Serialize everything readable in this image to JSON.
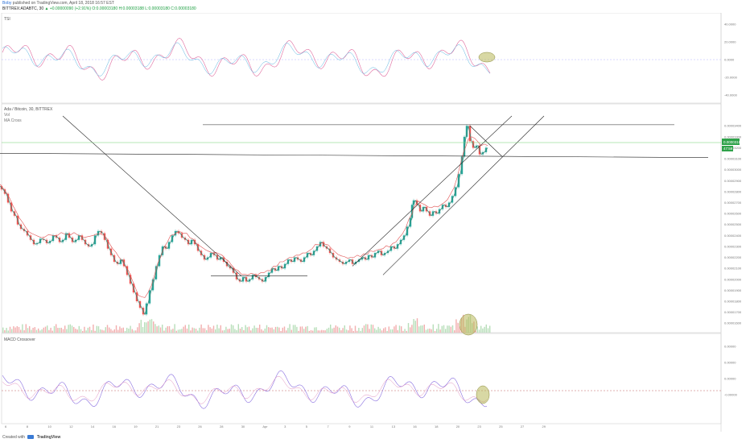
{
  "header": {
    "publisher_user": "Boby",
    "publisher_text": "published on TradingView.com, April 18, 2018 16:57 EST",
    "symbol_line": "BITTREX:ADABTC, 30",
    "ohlc_text": "O:0.00003180 H:0.00003188 L:0.00003180 C:0.00003180",
    "change_text": "▲ +0.00000090 (+2.91%)"
  },
  "panes": {
    "top_label": "TSI",
    "main_label": "Ada / Bitcoin, 30, BITTREX",
    "main_sub1": "Vol",
    "main_sub2": "MA Cross",
    "bottom_label": "MACD Crossover"
  },
  "price_badges": {
    "last": "0.00003180",
    "small": "47:59"
  },
  "footer": {
    "created_with": "Created with",
    "brand": "TradingView"
  },
  "chart_data": {
    "type": "line",
    "x_ticks": [
      "6",
      "8",
      "10",
      "12",
      "14",
      "16",
      "19",
      "21",
      "23",
      "26",
      "28",
      "30",
      "Apr",
      "3",
      "5",
      "7",
      "9",
      "11",
      "13",
      "16",
      "18",
      "20",
      "23",
      "25",
      "27",
      "29"
    ],
    "top_pane": {
      "name": "TSI",
      "y_ticks": [
        "40.0000",
        "20.0000",
        "0.0000",
        "-20.0000",
        "-40.0000"
      ],
      "ylim": [
        -50,
        50
      ]
    },
    "main_pane": {
      "name": "Ada / Bitcoin, 30, BITTREX",
      "y_ticks": [
        "0.00003400",
        "0.00003300",
        "0.00003200",
        "0.00003100",
        "0.00003000",
        "0.00002900",
        "0.00002800",
        "0.00002700",
        "0.00002600",
        "0.00002500",
        "0.00002400",
        "0.00002300",
        "0.00002200",
        "0.00002100",
        "0.00002000",
        "0.00001900",
        "0.00001800",
        "0.00001700",
        "0.00001600"
      ],
      "ylim": [
        1.55e-05,
        3.49e-05
      ],
      "price_path": [
        [
          0,
          2.85e-05
        ],
        [
          4,
          2.82e-05
        ],
        [
          8,
          2.78e-05
        ],
        [
          12,
          2.7e-05
        ],
        [
          16,
          2.62e-05
        ],
        [
          20,
          2.58e-05
        ],
        [
          24,
          2.5e-05
        ],
        [
          28,
          2.46e-05
        ],
        [
          32,
          2.44e-05
        ],
        [
          36,
          2.4e-05
        ],
        [
          40,
          2.36e-05
        ],
        [
          44,
          2.32e-05
        ],
        [
          48,
          2.33e-05
        ],
        [
          52,
          2.37e-05
        ],
        [
          56,
          2.36e-05
        ],
        [
          60,
          2.33e-05
        ],
        [
          64,
          2.35e-05
        ],
        [
          68,
          2.4e-05
        ],
        [
          72,
          2.38e-05
        ],
        [
          76,
          2.34e-05
        ],
        [
          80,
          2.36e-05
        ],
        [
          84,
          2.42e-05
        ],
        [
          88,
          2.38e-05
        ],
        [
          92,
          2.34e-05
        ],
        [
          96,
          2.36e-05
        ],
        [
          100,
          2.4e-05
        ],
        [
          104,
          2.36e-05
        ],
        [
          108,
          2.32e-05
        ],
        [
          112,
          2.3e-05
        ],
        [
          116,
          2.32e-05
        ],
        [
          120,
          2.4e-05
        ],
        [
          124,
          2.44e-05
        ],
        [
          128,
          2.42e-05
        ],
        [
          132,
          2.36e-05
        ],
        [
          136,
          2.28e-05
        ],
        [
          140,
          2.22e-05
        ],
        [
          144,
          2.16e-05
        ],
        [
          148,
          2.14e-05
        ],
        [
          152,
          2.18e-05
        ],
        [
          156,
          2.12e-05
        ],
        [
          160,
          2.04e-05
        ],
        [
          164,
          1.96e-05
        ],
        [
          168,
          1.88e-05
        ],
        [
          172,
          1.8e-05
        ],
        [
          176,
          1.74e-05
        ],
        [
          180,
          1.68e-05
        ],
        [
          184,
          1.78e-05
        ],
        [
          188,
          1.9e-05
        ],
        [
          192,
          2e-05
        ],
        [
          196,
          2.12e-05
        ],
        [
          200,
          2.22e-05
        ],
        [
          204,
          2.3e-05
        ],
        [
          208,
          2.28e-05
        ],
        [
          212,
          2.34e-05
        ],
        [
          216,
          2.4e-05
        ],
        [
          220,
          2.44e-05
        ],
        [
          224,
          2.42e-05
        ],
        [
          228,
          2.38e-05
        ],
        [
          232,
          2.36e-05
        ],
        [
          236,
          2.32e-05
        ],
        [
          240,
          2.36e-05
        ],
        [
          244,
          2.32e-05
        ],
        [
          248,
          2.26e-05
        ],
        [
          252,
          2.22e-05
        ],
        [
          256,
          2.18e-05
        ],
        [
          260,
          2.2e-05
        ],
        [
          264,
          2.24e-05
        ],
        [
          268,
          2.22e-05
        ],
        [
          272,
          2.18e-05
        ],
        [
          276,
          2.2e-05
        ],
        [
          280,
          2.16e-05
        ],
        [
          284,
          2.12e-05
        ],
        [
          288,
          2.1e-05
        ],
        [
          292,
          2.06e-05
        ],
        [
          296,
          2e-05
        ],
        [
          300,
          1.98e-05
        ],
        [
          304,
          2.02e-05
        ],
        [
          308,
          1.98e-05
        ],
        [
          312,
          2e-05
        ],
        [
          316,
          2.04e-05
        ],
        [
          320,
          2.02e-05
        ],
        [
          324,
          2e-05
        ],
        [
          328,
          1.98e-05
        ],
        [
          332,
          2.02e-05
        ],
        [
          336,
          2.06e-05
        ],
        [
          340,
          2.1e-05
        ],
        [
          344,
          2.08e-05
        ],
        [
          348,
          2.12e-05
        ],
        [
          352,
          2.1e-05
        ],
        [
          356,
          2.14e-05
        ],
        [
          360,
          2.18e-05
        ],
        [
          364,
          2.16e-05
        ],
        [
          368,
          2.2e-05
        ],
        [
          372,
          2.18e-05
        ],
        [
          376,
          2.16e-05
        ],
        [
          380,
          2.2e-05
        ],
        [
          384,
          2.24e-05
        ],
        [
          388,
          2.22e-05
        ],
        [
          392,
          2.26e-05
        ],
        [
          396,
          2.3e-05
        ],
        [
          400,
          2.34e-05
        ],
        [
          404,
          2.3e-05
        ],
        [
          408,
          2.28e-05
        ],
        [
          412,
          2.24e-05
        ],
        [
          416,
          2.2e-05
        ],
        [
          420,
          2.18e-05
        ],
        [
          424,
          2.16e-05
        ],
        [
          428,
          2.14e-05
        ],
        [
          432,
          2.16e-05
        ],
        [
          436,
          2.18e-05
        ],
        [
          440,
          2.14e-05
        ],
        [
          444,
          2.16e-05
        ],
        [
          448,
          2.18e-05
        ],
        [
          452,
          2.2e-05
        ],
        [
          456,
          2.18e-05
        ],
        [
          460,
          2.22e-05
        ],
        [
          464,
          2.2e-05
        ],
        [
          468,
          2.24e-05
        ],
        [
          472,
          2.26e-05
        ],
        [
          476,
          2.22e-05
        ],
        [
          480,
          2.24e-05
        ],
        [
          484,
          2.26e-05
        ],
        [
          488,
          2.3e-05
        ],
        [
          492,
          2.28e-05
        ],
        [
          496,
          2.32e-05
        ],
        [
          500,
          2.36e-05
        ],
        [
          504,
          2.4e-05
        ],
        [
          508,
          2.48e-05
        ],
        [
          512,
          2.56e-05
        ],
        [
          514,
          2.68e-05
        ],
        [
          516,
          2.72e-05
        ],
        [
          520,
          2.68e-05
        ],
        [
          524,
          2.62e-05
        ],
        [
          528,
          2.66e-05
        ],
        [
          532,
          2.62e-05
        ],
        [
          536,
          2.58e-05
        ],
        [
          540,
          2.62e-05
        ],
        [
          544,
          2.6e-05
        ],
        [
          548,
          2.64e-05
        ],
        [
          552,
          2.68e-05
        ],
        [
          556,
          2.66e-05
        ],
        [
          560,
          2.7e-05
        ],
        [
          564,
          2.76e-05
        ],
        [
          568,
          2.84e-05
        ],
        [
          572,
          2.96e-05
        ],
        [
          576,
          3.12e-05
        ],
        [
          579,
          3.3e-05
        ],
        [
          582,
          3.4e-05
        ],
        [
          586,
          3.26e-05
        ],
        [
          590,
          3.2e-05
        ],
        [
          594,
          3.22e-05
        ],
        [
          598,
          3.14e-05
        ],
        [
          602,
          3.16e-05
        ],
        [
          606,
          3.2e-05
        ]
      ],
      "last_price": 3.18e-05,
      "trend_lines": [
        {
          "x1": 78,
          "y1": 3.49e-05,
          "x2": 300,
          "y2": 2.03e-05
        },
        {
          "x1": 262,
          "y1": 2.03e-05,
          "x2": 382,
          "y2": 2.03e-05
        },
        {
          "x1": 252,
          "y1": 3.41e-05,
          "x2": 838,
          "y2": 3.41e-05
        },
        {
          "x1": 0,
          "y1": 3.15e-05,
          "x2": 880,
          "y2": 3.11e-05
        },
        {
          "x1": 438,
          "y1": 2.12e-05,
          "x2": 636,
          "y2": 3.49e-05
        },
        {
          "x1": 476,
          "y1": 2.04e-05,
          "x2": 676,
          "y2": 3.49e-05
        },
        {
          "x1": 584,
          "y1": 3.4e-05,
          "x2": 624,
          "y2": 3.12e-05
        }
      ]
    },
    "volume_pane": {
      "name": "Vol"
    },
    "bottom_pane": {
      "name": "MACD Crossover",
      "y_ticks": [
        "0.00000",
        "0.00000",
        "0.00000",
        "-0.00000"
      ],
      "ylim": [
        -1,
        1
      ]
    }
  }
}
